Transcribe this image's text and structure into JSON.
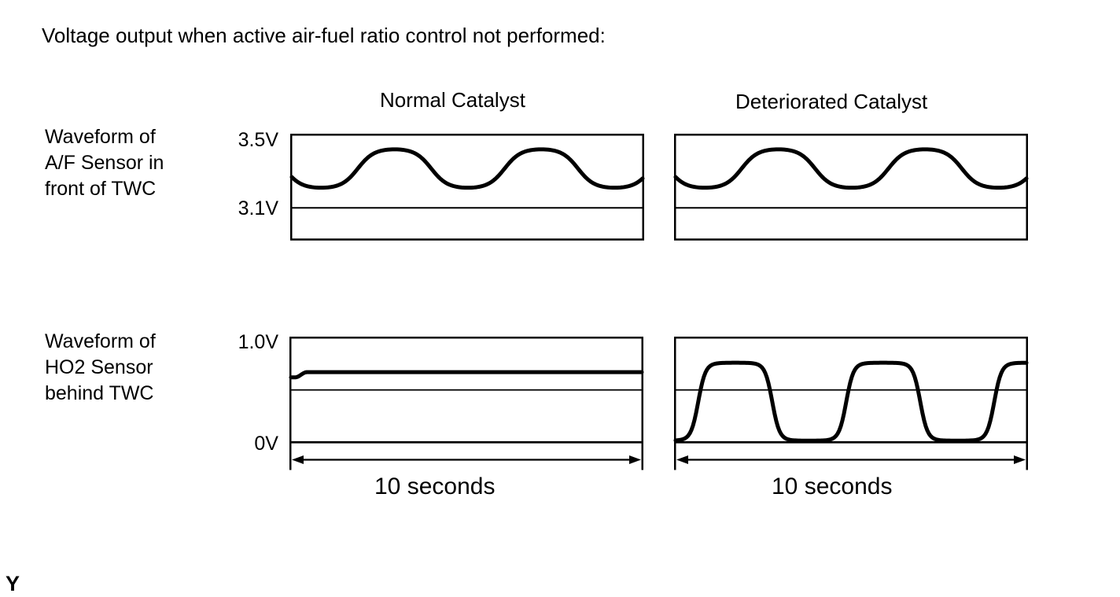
{
  "page": {
    "title": "Voltage output when active air-fuel ratio control not performed:",
    "footer_mark": "Y"
  },
  "colors": {
    "ink": "#000000",
    "background": "#ffffff"
  },
  "columns": [
    {
      "label": "Normal Catalyst"
    },
    {
      "label": "Deteriorated Catalyst"
    }
  ],
  "chart_data": [
    {
      "row_label": "Waveform of A/F Sensor in front of TWC",
      "row_label_lines": [
        "Waveform of",
        "A/F Sensor in",
        "front of TWC"
      ],
      "type": "line",
      "y_axis": {
        "labels": [
          {
            "text": "3.5V",
            "value": 3.5
          },
          {
            "text": "3.1V",
            "value": 3.1
          }
        ],
        "box_top_value": 3.5,
        "ref_line_values": [
          3.1
        ]
      },
      "x_axis": {
        "duration_label": null
      },
      "panels": [
        {
          "column": "Normal Catalyst",
          "wave": {
            "kind": "sine",
            "center_v": 3.315,
            "amplitude_v": 0.105,
            "min_v": 3.21,
            "max_v": 3.42,
            "cycles": 2.39,
            "phase_deg": 198,
            "flatten": 1.3
          }
        },
        {
          "column": "Deteriorated Catalyst",
          "wave": {
            "kind": "sine",
            "center_v": 3.315,
            "amplitude_v": 0.105,
            "min_v": 3.21,
            "max_v": 3.42,
            "cycles": 2.39,
            "phase_deg": 198,
            "flatten": 1.3
          }
        }
      ]
    },
    {
      "row_label": "Waveform of HO2 Sensor behind TWC",
      "row_label_lines": [
        "Waveform of",
        "HO2 Sensor",
        "behind TWC"
      ],
      "type": "line",
      "y_axis": {
        "labels": [
          {
            "text": "1.0V",
            "value": 1.0
          },
          {
            "text": "0V",
            "value": 0.0
          }
        ],
        "box_top_value": 1.0,
        "ref_line_values": [
          0.5
        ],
        "zero_line_value": 0.0
      },
      "x_axis": {
        "duration_label": "10 seconds",
        "duration_seconds": 10
      },
      "panels": [
        {
          "column": "Normal Catalyst",
          "wave": {
            "kind": "flat",
            "level_v": 0.67,
            "start_level_v": 0.62
          }
        },
        {
          "column": "Deteriorated Catalyst",
          "wave": {
            "kind": "smoothed-square",
            "low_v": 0.015,
            "high_v": 0.76,
            "cycles": 2.37,
            "first_peak_frac": 0.17,
            "edge_sharpness": 3.2
          }
        }
      ]
    }
  ]
}
